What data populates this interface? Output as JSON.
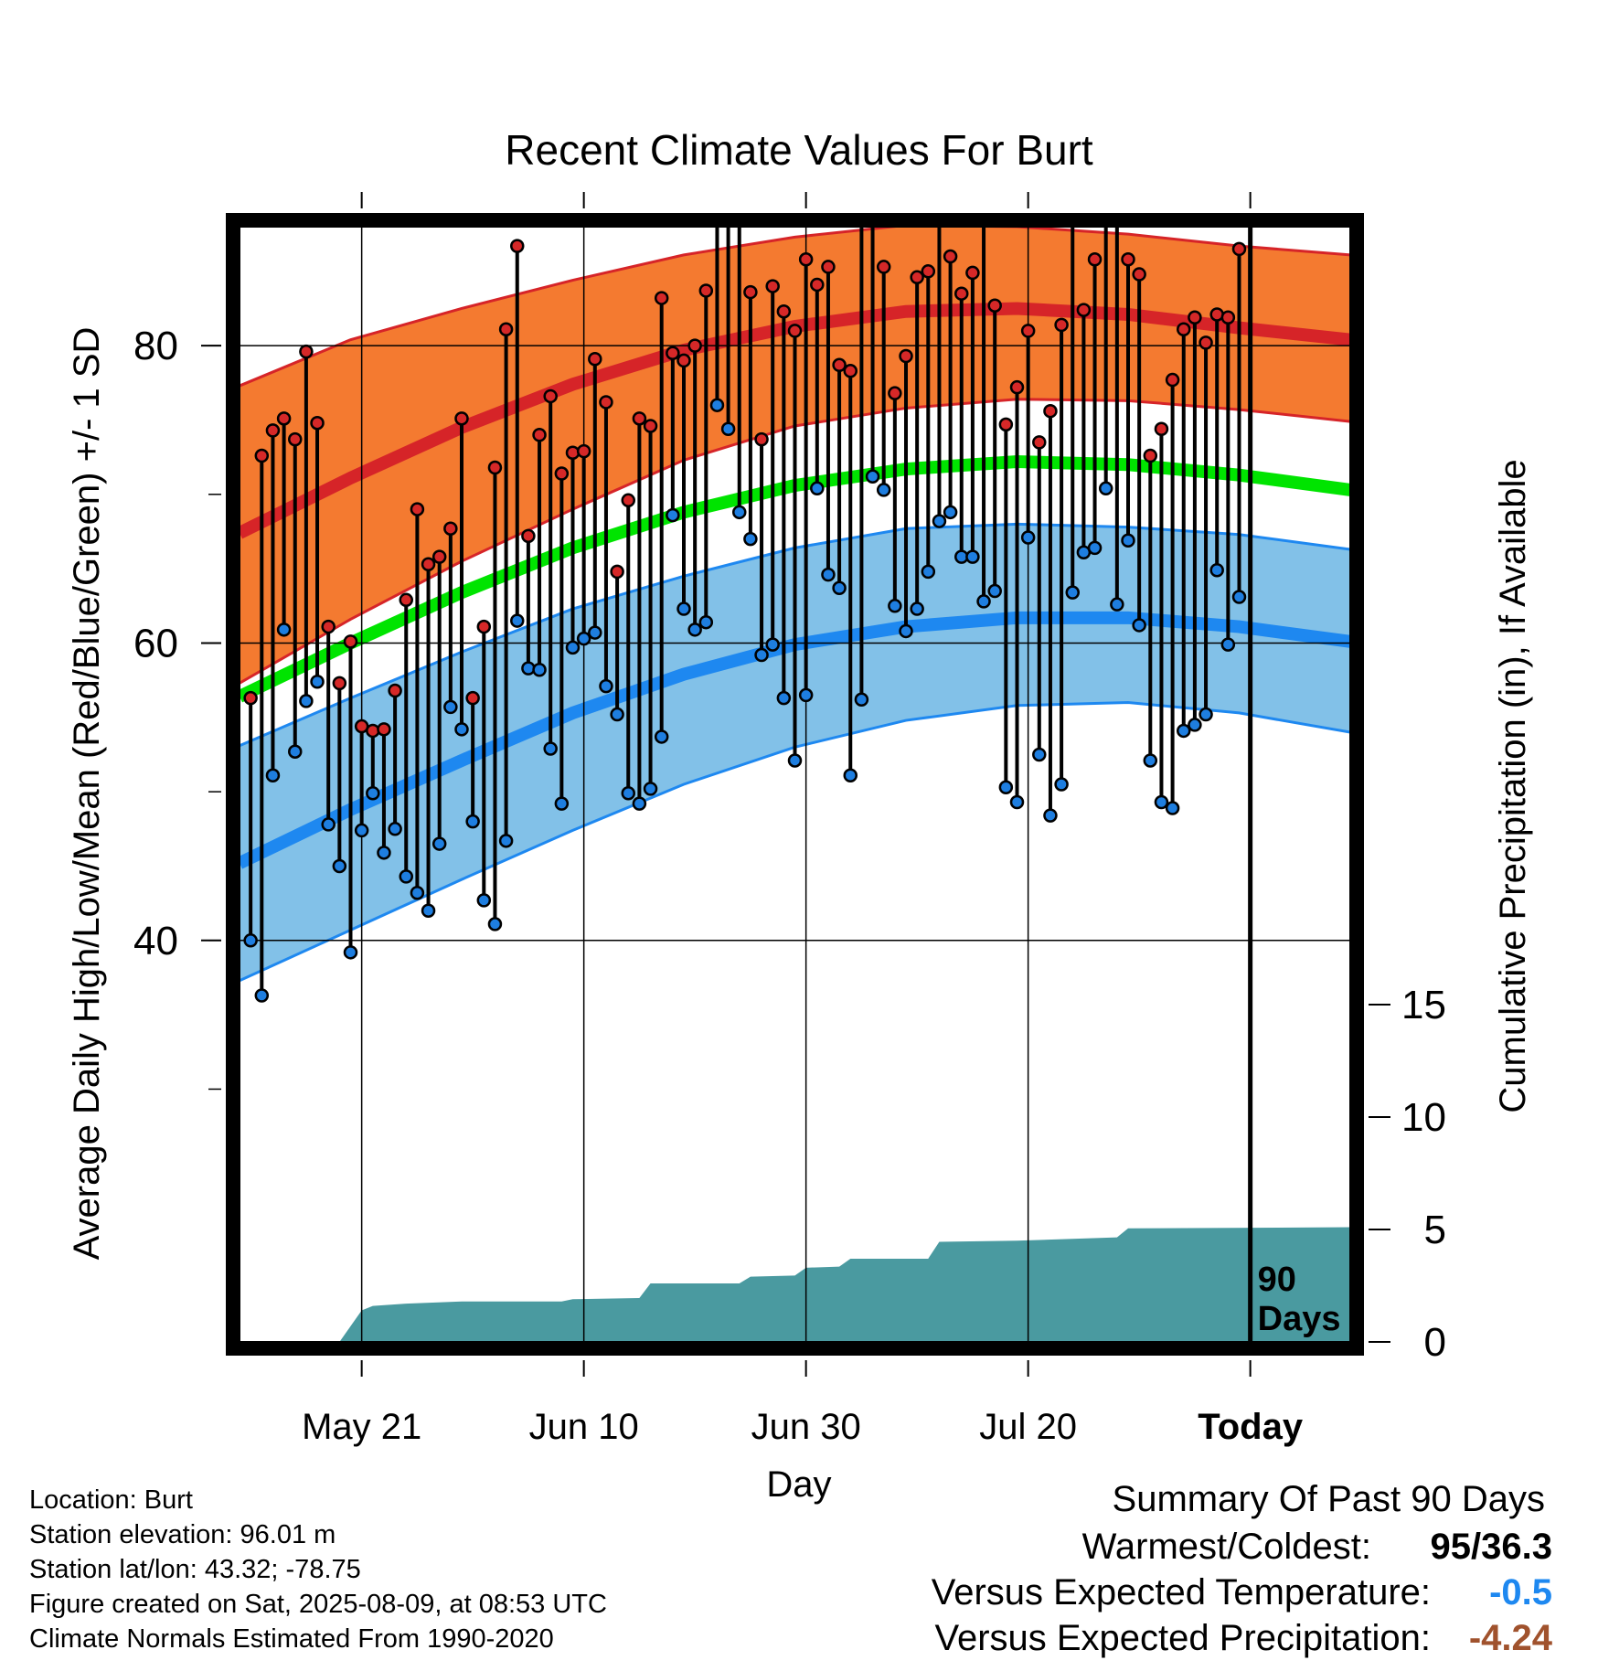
{
  "chart_data": {
    "type": "line",
    "title": "Recent Climate Values For Burt",
    "xlabel": "Day",
    "ylabel": "Average Daily High/Low/Mean (Red/Blue/Green) +/- 1 SD",
    "y2label": "Cumulative Precipitation (in), If Available",
    "ylim": [
      13,
      88
    ],
    "y_ticks": [
      40,
      60,
      80
    ],
    "y2_ticks": [
      0,
      5,
      10,
      15
    ],
    "x_tick_labels": [
      {
        "day": 11,
        "label": "May 21"
      },
      {
        "day": 31,
        "label": "Jun 10"
      },
      {
        "day": 51,
        "label": "Jun 30"
      },
      {
        "day": 71,
        "label": "Jul 20"
      },
      {
        "day": 91,
        "label": "Today"
      }
    ],
    "x_range": [
      0,
      100
    ],
    "today_marker": {
      "day": 91,
      "label_line1": "90",
      "label_line2": "Days"
    },
    "normals": {
      "days": [
        0,
        10,
        20,
        30,
        40,
        50,
        60,
        70,
        80,
        90,
        100
      ],
      "high_mean": [
        67.4,
        71.1,
        74.5,
        77.4,
        79.7,
        81.3,
        82.3,
        82.5,
        82.1,
        81.2,
        80.4
      ],
      "high_upper": [
        77.3,
        80.4,
        82.5,
        84.4,
        86.1,
        87.3,
        88.1,
        88.0,
        87.5,
        86.7,
        86.1
      ],
      "high_lower": [
        57.3,
        61.6,
        65.5,
        69.0,
        72.3,
        74.6,
        75.8,
        76.4,
        76.3,
        75.7,
        74.9
      ],
      "mean": [
        56.4,
        60.0,
        63.4,
        66.4,
        68.8,
        70.6,
        71.7,
        72.2,
        72.0,
        71.3,
        70.3
      ],
      "low_mean": [
        45.2,
        48.8,
        52.1,
        55.3,
        57.9,
        59.9,
        61.1,
        61.7,
        61.7,
        61.1,
        60.1
      ],
      "low_upper": [
        53.1,
        56.3,
        59.4,
        62.3,
        64.5,
        66.4,
        67.7,
        68.0,
        67.8,
        67.3,
        66.3
      ],
      "low_lower": [
        37.3,
        40.7,
        44.1,
        47.4,
        50.5,
        53.0,
        54.8,
        55.8,
        56.0,
        55.3,
        54.0
      ]
    },
    "observed": {
      "days": [
        1,
        2,
        3,
        4,
        5,
        6,
        7,
        8,
        9,
        10,
        11,
        12,
        13,
        14,
        15,
        16,
        17,
        18,
        19,
        20,
        21,
        22,
        23,
        24,
        25,
        26,
        27,
        28,
        29,
        30,
        31,
        32,
        33,
        34,
        35,
        36,
        37,
        38,
        39,
        40,
        41,
        42,
        43,
        44,
        45,
        46,
        47,
        48,
        49,
        50,
        51,
        52,
        53,
        54,
        55,
        56,
        57,
        58,
        59,
        60,
        61,
        62,
        63,
        64,
        65,
        66,
        67,
        68,
        69,
        70,
        71,
        72,
        73,
        74,
        75,
        76,
        77,
        78,
        79,
        80,
        81,
        82,
        83,
        84,
        85,
        86,
        87,
        88,
        89,
        90
      ],
      "highs": [
        56.3,
        72.6,
        74.3,
        75.1,
        73.7,
        79.6,
        74.8,
        61.1,
        57.3,
        60.1,
        54.4,
        54.1,
        54.2,
        56.8,
        62.9,
        69.0,
        65.3,
        65.8,
        67.7,
        75.1,
        56.3,
        61.1,
        71.8,
        81.1,
        86.7,
        67.2,
        74.0,
        76.6,
        71.4,
        72.8,
        72.9,
        79.1,
        76.2,
        64.8,
        69.6,
        75.1,
        74.6,
        83.2,
        79.5,
        79.0,
        80.0,
        83.7,
        91.2,
        94.3,
        95.0,
        83.6,
        73.7,
        84.0,
        82.3,
        81.0,
        85.8,
        84.1,
        85.3,
        78.7,
        78.3,
        88.9,
        91.3,
        85.3,
        76.8,
        79.3,
        84.6,
        85.0,
        92.8,
        86.0,
        83.5,
        84.9,
        88.7,
        82.7,
        74.7,
        77.2,
        81.0,
        73.5,
        75.6,
        81.4,
        91.0,
        82.4,
        85.8,
        89.4,
        91.2,
        85.8,
        84.8,
        72.6,
        74.4,
        77.7,
        81.1,
        81.9,
        80.2,
        82.1,
        81.9,
        86.5
      ],
      "lows": [
        40.0,
        36.3,
        51.1,
        60.9,
        52.7,
        56.1,
        57.4,
        47.8,
        45.0,
        39.2,
        47.4,
        49.9,
        45.9,
        47.5,
        44.3,
        43.2,
        42.0,
        46.5,
        55.7,
        54.2,
        48.0,
        42.7,
        41.1,
        46.7,
        61.5,
        58.3,
        58.2,
        52.9,
        49.2,
        59.7,
        60.3,
        60.7,
        57.1,
        55.2,
        49.9,
        49.2,
        50.2,
        53.7,
        68.6,
        62.3,
        60.9,
        61.4,
        76.0,
        74.4,
        68.8,
        67.0,
        59.2,
        59.9,
        56.3,
        52.1,
        56.5,
        70.4,
        64.6,
        63.7,
        51.1,
        56.2,
        71.2,
        70.3,
        62.5,
        60.8,
        62.3,
        64.8,
        68.2,
        68.8,
        65.8,
        65.8,
        62.8,
        63.5,
        50.3,
        49.3,
        67.1,
        52.5,
        48.4,
        50.5,
        63.4,
        66.1,
        66.4,
        70.4,
        62.6,
        66.9,
        61.2,
        52.1,
        49.3,
        48.9,
        54.1,
        54.5,
        55.2,
        64.9,
        59.9,
        63.1
      ]
    },
    "precipitation": {
      "days": [
        0,
        9,
        10,
        11,
        12,
        15,
        20,
        25,
        29,
        30,
        36,
        37,
        45,
        46,
        50,
        51,
        54,
        55,
        62,
        63,
        70,
        79,
        80,
        100
      ],
      "cumulative": [
        0,
        0,
        0.7,
        1.4,
        1.6,
        1.7,
        1.8,
        1.8,
        1.8,
        1.9,
        1.95,
        2.6,
        2.6,
        2.9,
        2.95,
        3.3,
        3.35,
        3.7,
        3.7,
        4.45,
        4.5,
        4.65,
        5.05,
        5.1
      ]
    },
    "colors": {
      "high_band": "#f47a30",
      "high_line": "#d62428",
      "mean_line": "#00e400",
      "low_band": "#82c1e8",
      "low_line": "#1e88f0",
      "precip": "#4a9aa0",
      "high_point": "#d62828",
      "low_point": "#1e7ee0"
    },
    "grid": true
  },
  "info": {
    "location": "Location: Burt",
    "elevation": "Station elevation: 96.01 m",
    "latlon": "Station lat/lon: 43.32; -78.75",
    "created": "Figure created on Sat, 2025-08-09, at 08:53 UTC",
    "normals_period": "Climate Normals Estimated From 1990-2020"
  },
  "summary": {
    "title": "Summary Of Past 90 Days",
    "warmest_label": "Warmest/Coldest:",
    "warmest_value": "95/36.3",
    "temp_label": "Versus Expected Temperature:",
    "temp_value": "-0.5",
    "temp_color": "#1e88f0",
    "precip_label": "Versus Expected Precipitation:",
    "precip_value": "-4.24",
    "precip_color": "#a0522d"
  }
}
